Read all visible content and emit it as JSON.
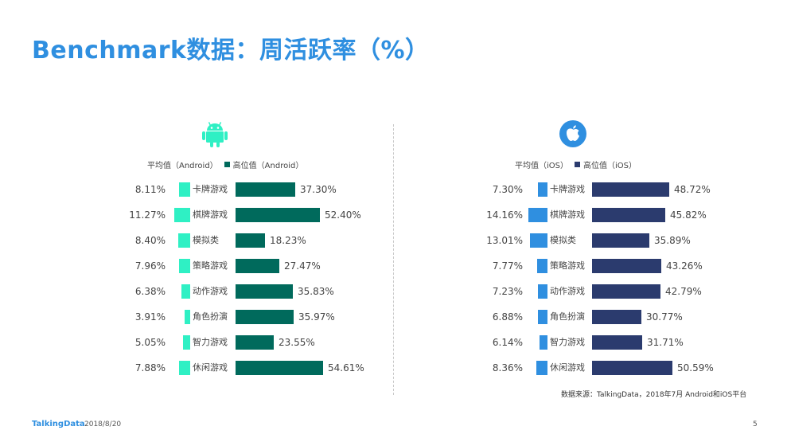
{
  "title": "Benchmark数据：周活跃率（%）",
  "colors": {
    "title": "#2f8fe0",
    "android_avg": "#2ff0c4",
    "android_high": "#006a5c",
    "ios_avg": "#2f8fe0",
    "ios_high": "#2b3b6e"
  },
  "chart_data": [
    {
      "type": "bar",
      "platform_icon": "android-icon",
      "categories": [
        "卡牌游戏",
        "棋牌游戏",
        "模拟类",
        "策略游戏",
        "动作游戏",
        "角色扮演",
        "智力游戏",
        "休闲游戏"
      ],
      "series": [
        {
          "name": "平均值（Android）",
          "values": [
            8.11,
            11.27,
            8.4,
            7.96,
            6.38,
            3.91,
            5.05,
            7.88
          ],
          "labels": [
            "8.11%",
            "11.27%",
            "8.40%",
            "7.96%",
            "6.38%",
            "3.91%",
            "5.05%",
            "7.88%"
          ]
        },
        {
          "name": "高位值（Android）",
          "values": [
            37.3,
            52.4,
            18.23,
            27.47,
            35.83,
            35.97,
            23.55,
            54.61
          ],
          "labels": [
            "37.30%",
            "52.40%",
            "18.23%",
            "27.47%",
            "35.83%",
            "35.97%",
            "23.55%",
            "54.61%"
          ]
        }
      ],
      "legend_placement": "top"
    },
    {
      "type": "bar",
      "platform_icon": "apple-icon",
      "categories": [
        "卡牌游戏",
        "棋牌游戏",
        "模拟类",
        "策略游戏",
        "动作游戏",
        "角色扮演",
        "智力游戏",
        "休闲游戏"
      ],
      "series": [
        {
          "name": "平均值（iOS）",
          "values": [
            7.3,
            14.16,
            13.01,
            7.77,
            7.23,
            6.88,
            6.14,
            8.36
          ],
          "labels": [
            "7.30%",
            "14.16%",
            "13.01%",
            "7.77%",
            "7.23%",
            "6.88%",
            "6.14%",
            "8.36%"
          ]
        },
        {
          "name": "高位值（iOS）",
          "values": [
            48.72,
            45.82,
            35.89,
            43.26,
            42.79,
            30.77,
            31.71,
            50.59
          ],
          "labels": [
            "48.72%",
            "45.82%",
            "35.89%",
            "43.26%",
            "42.79%",
            "30.77%",
            "31.71%",
            "50.59%"
          ]
        }
      ],
      "legend_placement": "top"
    }
  ],
  "source": "数据来源：TalkingData，2018年7月 Android和iOS平台",
  "footer": {
    "brand": "TalkingData",
    "date": "2018/8/20",
    "page": "5"
  }
}
